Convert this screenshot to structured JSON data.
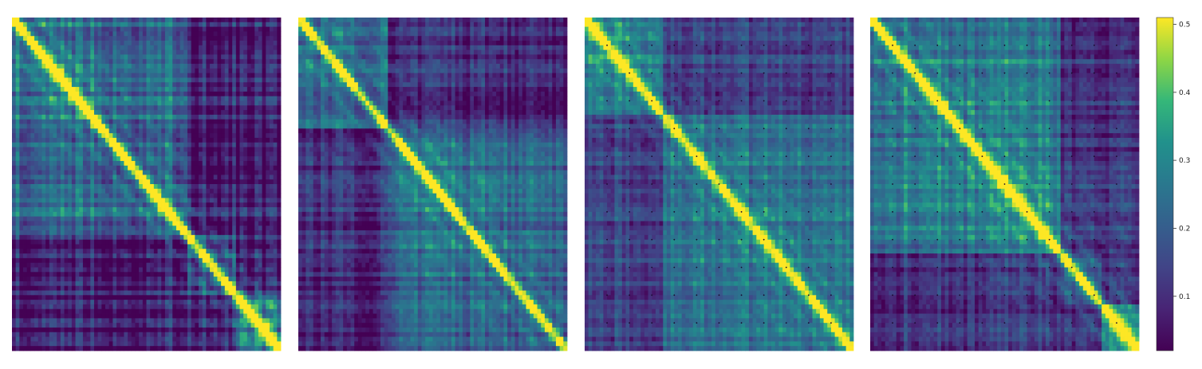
{
  "chart_data": {
    "type": "heatmap",
    "colormap": "viridis",
    "panels": [
      {
        "name": "",
        "size": 72,
        "base": 0.13,
        "diagonal_peak": 0.5,
        "diagonal_width": 1.6,
        "off_diagonal_scale": 0.12,
        "region_boundaries": [
          0.65,
          0.82
        ],
        "region_strength": [
          0.16,
          0.04,
          0.2
        ],
        "band_strength": 0.14,
        "dot_grid": false
      },
      {
        "name": "",
        "size": 72,
        "base": 0.16,
        "diagonal_peak": 0.45,
        "diagonal_width": 1.4,
        "off_diagonal_scale": 0.1,
        "region_boundaries": [
          0.33
        ],
        "region_strength": [
          0.12,
          0.1
        ],
        "band_strength": 0.12,
        "dot_grid": false
      },
      {
        "name": "",
        "size": 72,
        "base": 0.2,
        "diagonal_peak": 0.45,
        "diagonal_width": 1.8,
        "off_diagonal_scale": 0.09,
        "region_boundaries": [
          0.28
        ],
        "region_strength": [
          0.14,
          0.08
        ],
        "band_strength": 0.1,
        "dot_grid": true
      },
      {
        "name": "",
        "size": 72,
        "base": 0.18,
        "diagonal_peak": 0.48,
        "diagonal_width": 1.7,
        "off_diagonal_scale": 0.11,
        "region_boundaries": [
          0.7,
          0.85
        ],
        "region_strength": [
          0.14,
          0.02,
          0.22
        ],
        "band_strength": 0.12,
        "dot_grid": true
      }
    ],
    "colorbar": {
      "min": 0.02,
      "max": 0.51,
      "ticks": [
        0.1,
        0.2,
        0.3,
        0.4,
        0.5
      ],
      "tick_labels": [
        "0.1",
        "0.2",
        "0.3",
        "0.4",
        "0.5"
      ]
    }
  }
}
